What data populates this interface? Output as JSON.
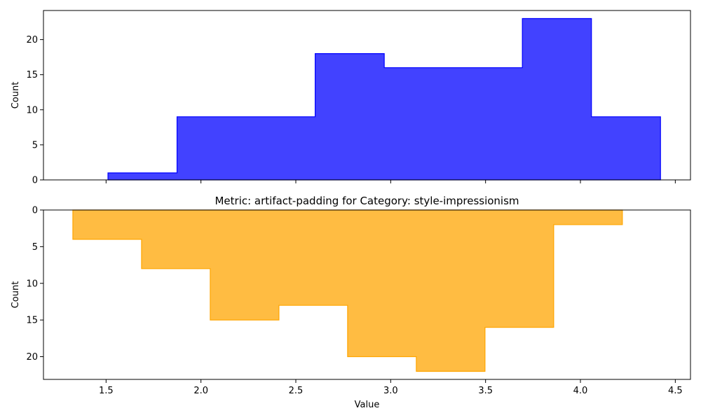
{
  "chart_data": [
    {
      "type": "histogram",
      "orientation": "up",
      "title": "",
      "xlabel": "",
      "ylabel": "Count",
      "xlim": [
        1.17,
        4.58
      ],
      "ylim": [
        0,
        24.15
      ],
      "yticks": [
        0,
        5,
        10,
        15,
        20
      ],
      "xticks": [
        1.5,
        2.0,
        2.5,
        3.0,
        3.5,
        4.0,
        4.5
      ],
      "x_tick_labels_shown": false,
      "color": "#0000ff",
      "bin_edges": [
        1.51,
        1.874,
        2.238,
        2.602,
        2.966,
        3.33,
        3.694,
        4.058,
        4.422
      ],
      "counts": [
        1,
        9,
        9,
        18,
        16,
        16,
        23,
        9
      ]
    },
    {
      "type": "histogram",
      "orientation": "down",
      "title": "Metric: artifact-padding for Category: style-impressionism",
      "xlabel": "Value",
      "ylabel": "Count",
      "xlim": [
        1.17,
        4.58
      ],
      "ylim": [
        0,
        23.1
      ],
      "yticks": [
        0,
        5,
        10,
        15,
        20
      ],
      "xticks": [
        1.5,
        2.0,
        2.5,
        3.0,
        3.5,
        4.0,
        4.5
      ],
      "x_tick_labels_shown": true,
      "color": "#ffa500",
      "bin_edges": [
        1.325,
        1.687,
        2.049,
        2.411,
        2.773,
        3.135,
        3.497,
        3.859,
        4.221
      ],
      "counts": [
        4,
        8,
        15,
        13,
        20,
        22,
        16,
        2
      ]
    }
  ]
}
